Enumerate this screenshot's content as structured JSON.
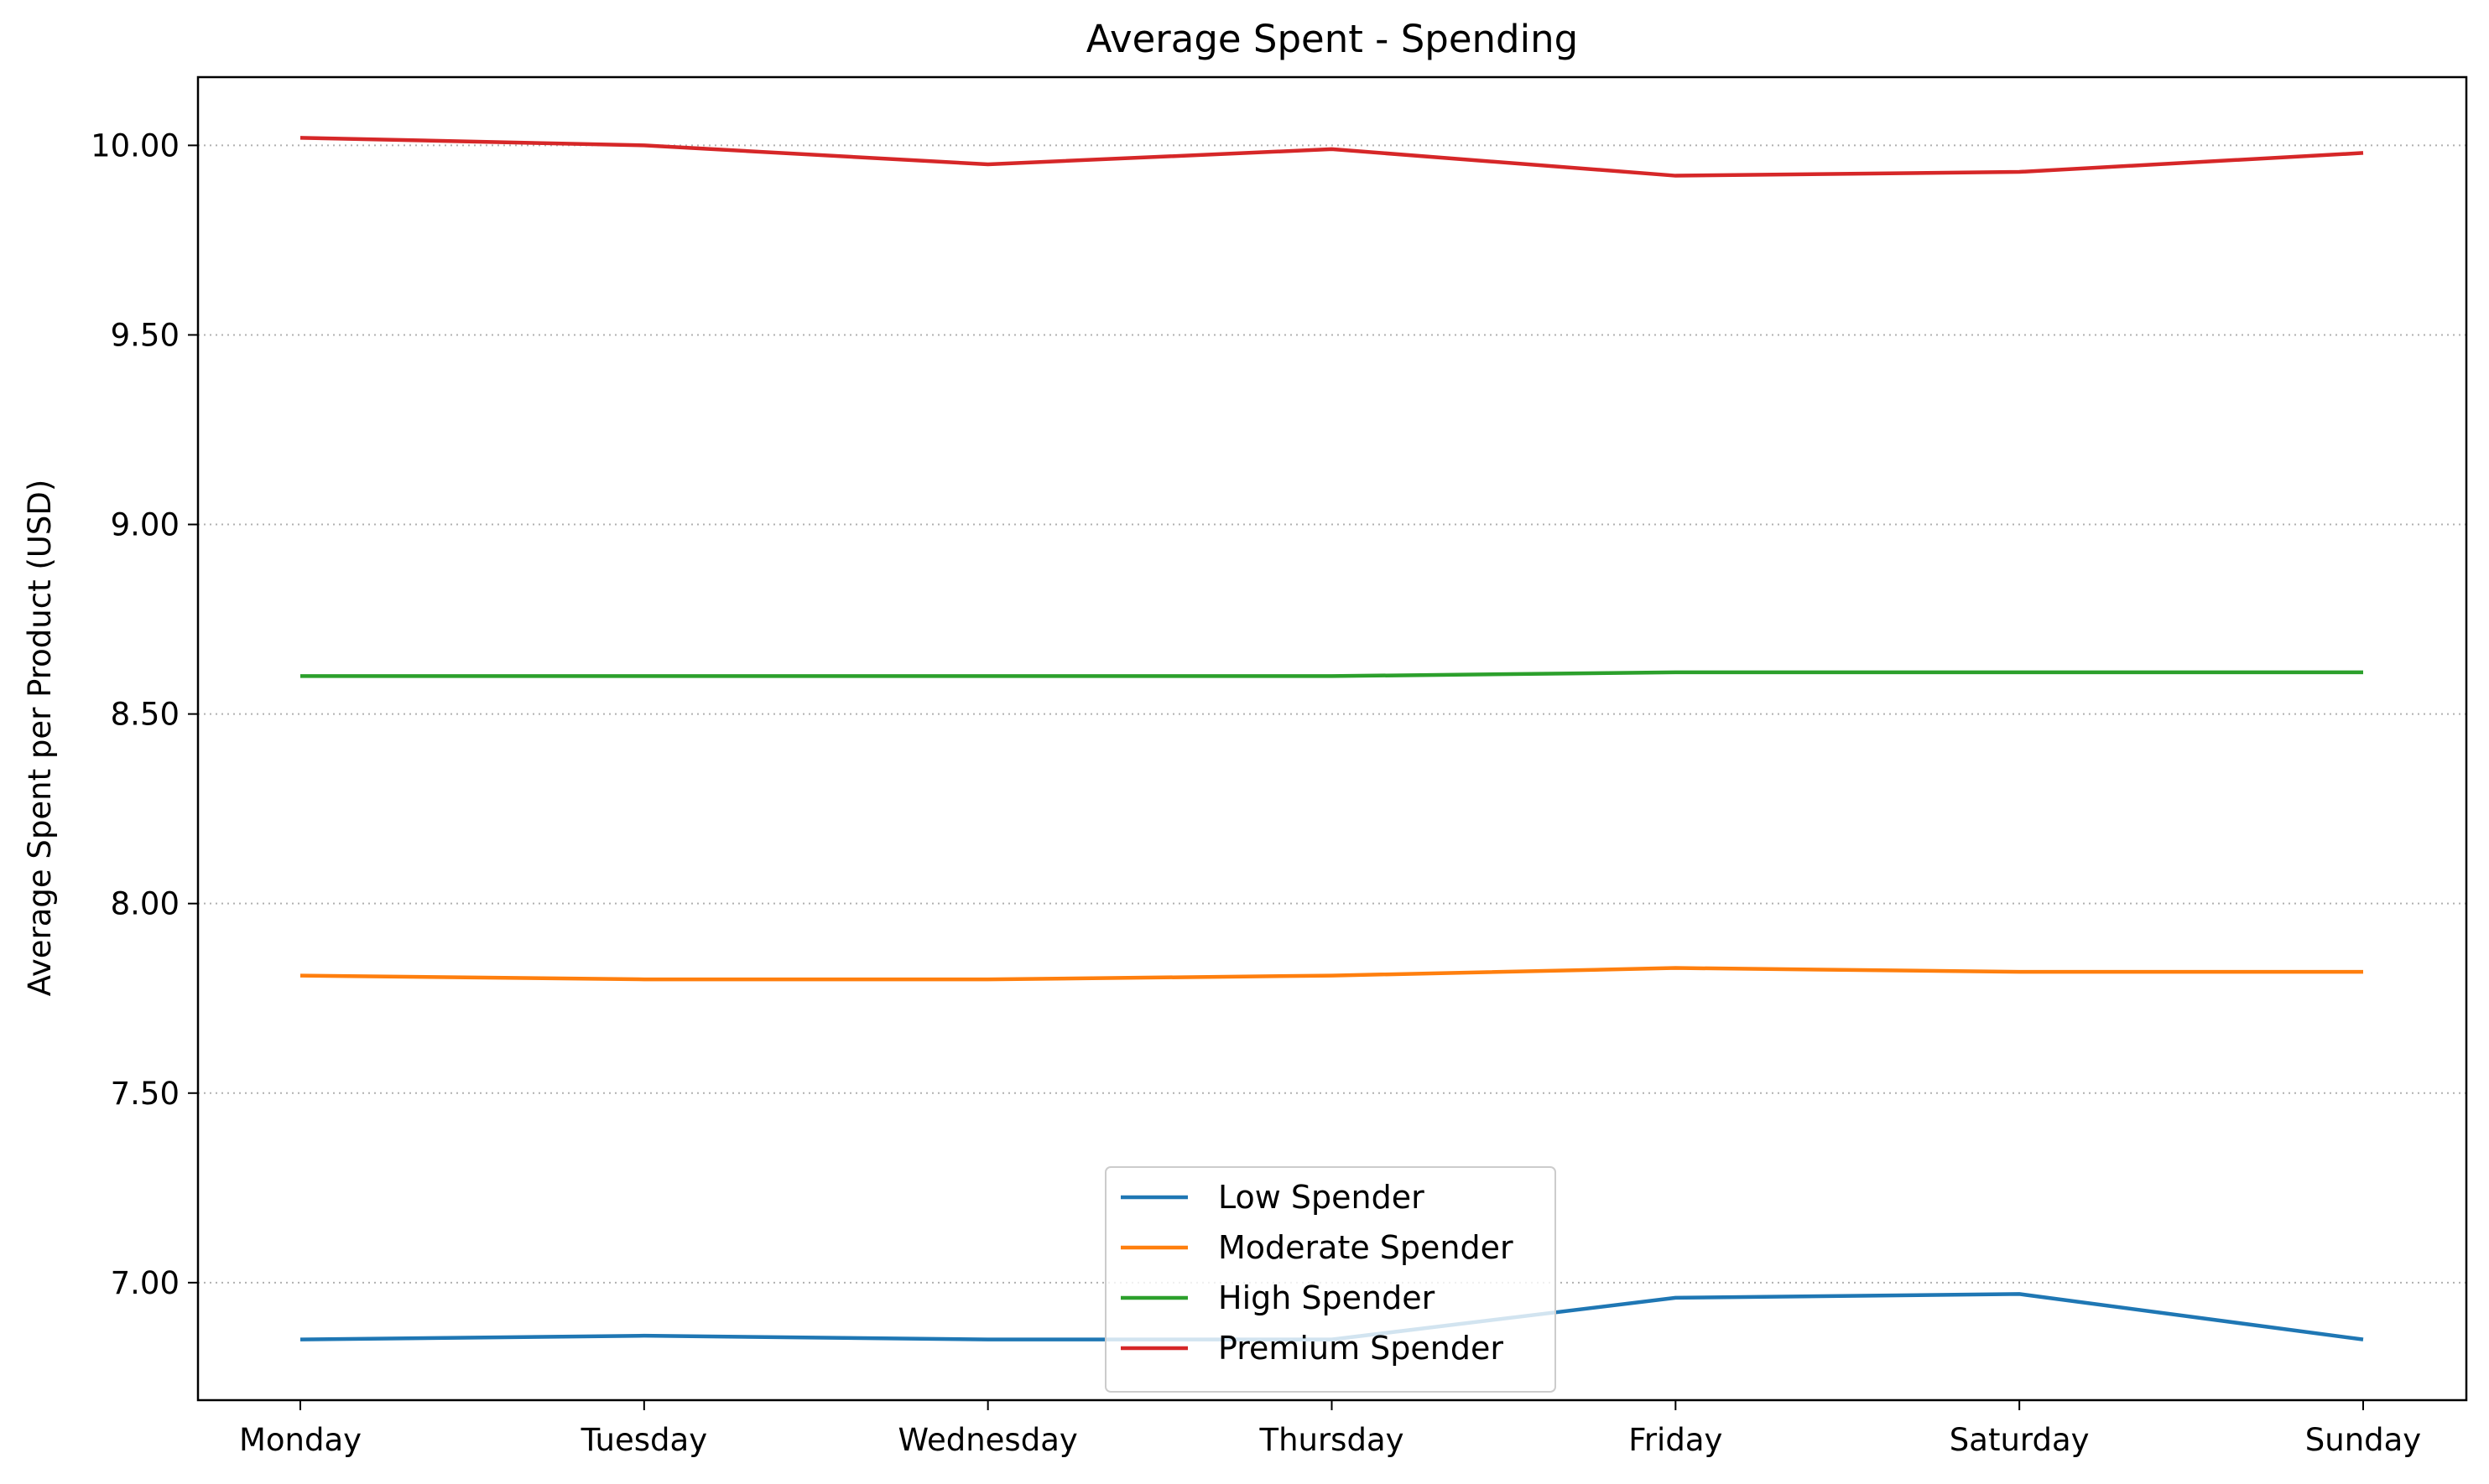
{
  "chart_data": {
    "type": "line",
    "title": "Average Spent - Spending",
    "xlabel": "",
    "ylabel": "Average Spent per Product (USD)",
    "categories": [
      "Monday",
      "Tuesday",
      "Wednesday",
      "Thursday",
      "Friday",
      "Saturday",
      "Sunday"
    ],
    "ylim": [
      6.69,
      10.18
    ],
    "yticks": [
      "7.00",
      "7.50",
      "8.00",
      "8.50",
      "9.00",
      "9.50",
      "10.00"
    ],
    "grid": "y-dotted",
    "legend_position": "bottom-center",
    "series": [
      {
        "name": "Low Spender",
        "color": "#1f77b4",
        "values": [
          6.85,
          6.86,
          6.85,
          6.85,
          6.96,
          6.97,
          6.85
        ]
      },
      {
        "name": "Moderate Spender",
        "color": "#ff7f0e",
        "values": [
          7.81,
          7.8,
          7.8,
          7.81,
          7.83,
          7.82,
          7.82
        ]
      },
      {
        "name": "High Spender",
        "color": "#2ca02c",
        "values": [
          8.6,
          8.6,
          8.6,
          8.6,
          8.61,
          8.61,
          8.61
        ]
      },
      {
        "name": "Premium Spender",
        "color": "#d62728",
        "values": [
          10.02,
          10.0,
          9.95,
          9.99,
          9.92,
          9.93,
          9.98
        ]
      }
    ]
  }
}
